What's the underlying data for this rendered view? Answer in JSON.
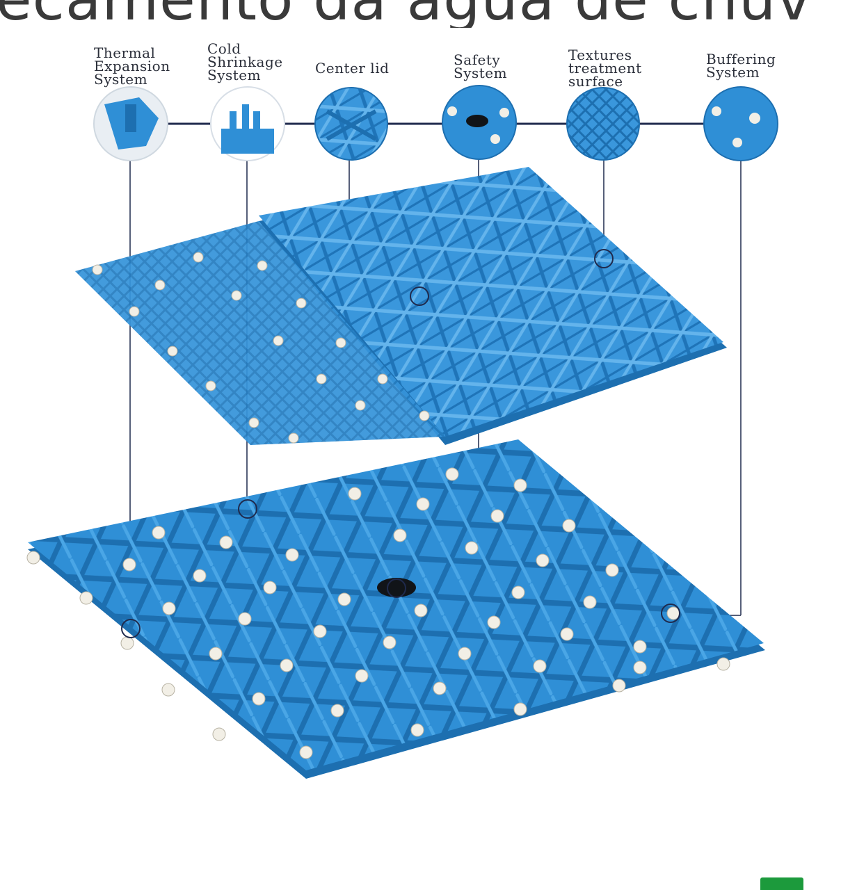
{
  "heading": "ecamento da água de chuv",
  "features": [
    {
      "id": "thermal",
      "label_lines": [
        "Thermal",
        "Expansion",
        "System"
      ]
    },
    {
      "id": "cold",
      "label_lines": [
        "Cold",
        "Shrinkage",
        "System"
      ]
    },
    {
      "id": "center",
      "label_lines": [
        "Center lid"
      ]
    },
    {
      "id": "safety",
      "label_lines": [
        "Safety",
        "System"
      ]
    },
    {
      "id": "texture",
      "label_lines": [
        "Textures",
        "treatment",
        "surface"
      ]
    },
    {
      "id": "buffer",
      "label_lines": [
        "Buffering",
        "System"
      ]
    }
  ],
  "colors": {
    "tile_blue": "#2f8fd6",
    "tile_shadow": "#1d6fb0",
    "tile_light": "#5db0ea",
    "connector_line": "#1f2a4d",
    "stud": "#f2efe6",
    "badge": "#1c9a3c"
  }
}
